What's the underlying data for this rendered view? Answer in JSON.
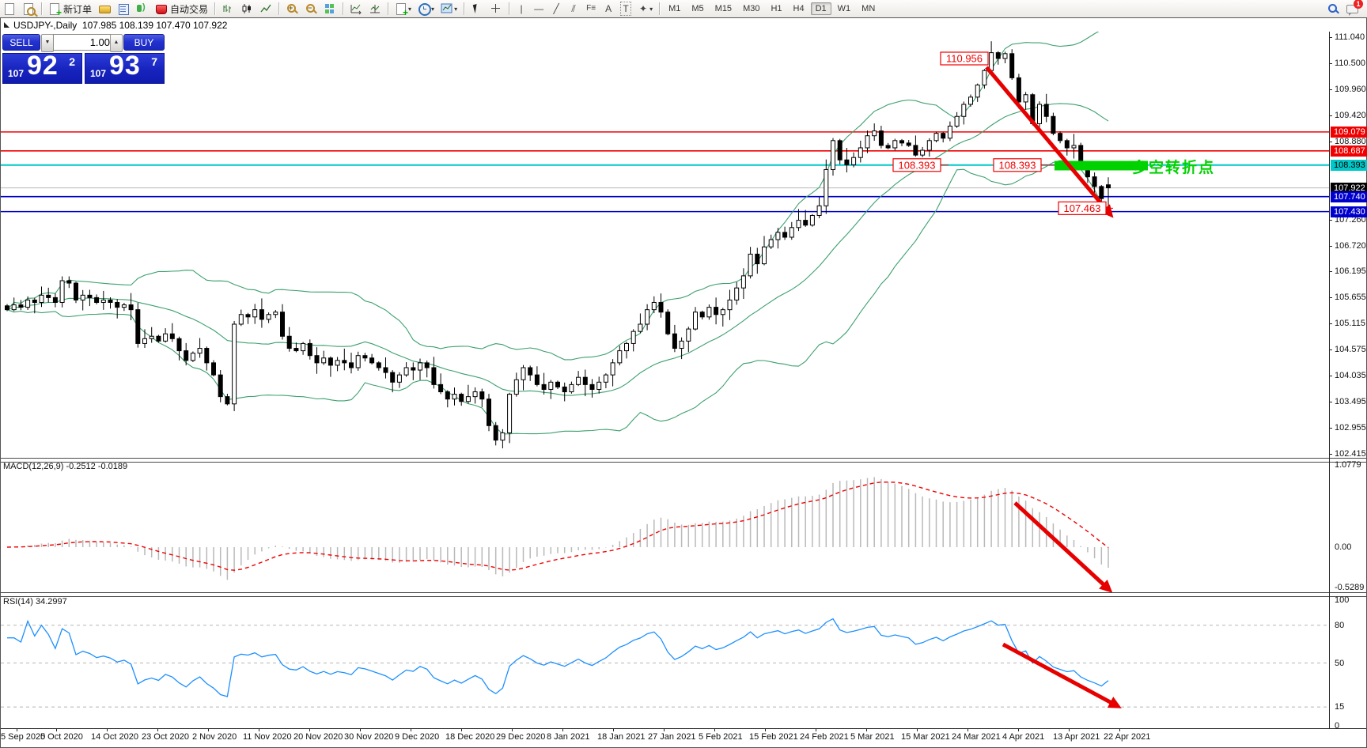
{
  "toolbar": {
    "new_order_label": "新订单",
    "autotrading_label": "自动交易",
    "timeframes": [
      "M1",
      "M5",
      "M15",
      "M30",
      "H1",
      "H4",
      "D1",
      "W1",
      "MN"
    ],
    "active_timeframe": "D1",
    "chat_badge": "1"
  },
  "chart": {
    "title_symbol": "USDJPY-,Daily",
    "title_ohlc": "107.985 108.139 107.470 107.922",
    "one_click": {
      "sell_label": "SELL",
      "buy_label": "BUY",
      "volume": "1.00",
      "sell_prefix": "107",
      "sell_big": "92",
      "sell_sup": "2",
      "buy_prefix": "107",
      "buy_big": "93",
      "buy_sup": "7"
    },
    "y_ticks": [
      "111.040",
      "110.500",
      "109.960",
      "109.420",
      "108.880",
      "107.260",
      "106.720",
      "106.195",
      "105.655",
      "105.115",
      "104.575",
      "104.035",
      "103.495",
      "102.955",
      "102.415"
    ],
    "price_badges": [
      {
        "value": "109.079",
        "bg": "#f00000",
        "fg": "#ffffff",
        "line": "#f00000",
        "line_w": 1.6
      },
      {
        "value": "108.687",
        "bg": "#f00000",
        "fg": "#ffffff",
        "line": "#f00000",
        "line_w": 1.6
      },
      {
        "value": "108.393",
        "bg": "#00c8c8",
        "fg": "#000000",
        "line": "#00c8c8",
        "line_w": 2
      },
      {
        "value": "107.922",
        "bg": "#000000",
        "fg": "#ffffff",
        "line": "#b8b8b8",
        "line_w": 1
      },
      {
        "value": "107.740",
        "bg": "#0000cc",
        "fg": "#ffffff",
        "line": "#0000cc",
        "line_w": 1.6
      },
      {
        "value": "107.430",
        "bg": "#0000cc",
        "fg": "#ffffff",
        "line": "#0000cc",
        "line_w": 1.6
      }
    ],
    "annotations": {
      "peak_label": "110.956",
      "support_label_1": "108.393",
      "support_label_2": "108.393",
      "low_label": "107.463",
      "zone_text": "多空转折点",
      "zone_color": "#00d200",
      "arrow_color": "#e60000"
    },
    "dates": [
      "5 Sep 2020",
      "5 Oct 2020",
      "14 Oct 2020",
      "23 Oct 2020",
      "2 Nov 2020",
      "11 Nov 2020",
      "20 Nov 2020",
      "30 Nov 2020",
      "9 Dec 2020",
      "18 Dec 2020",
      "29 Dec 2020",
      "8 Jan 2021",
      "18 Jan 2021",
      "27 Jan 2021",
      "5 Feb 2021",
      "15 Feb 2021",
      "24 Feb 2021",
      "5 Mar 2021",
      "15 Mar 2021",
      "24 Mar 2021",
      "4 Apr 2021",
      "13 Apr 2021",
      "22 Apr 2021"
    ]
  },
  "macd": {
    "label": "MACD(12,26,9) -0.2512 -0.0189",
    "ticks": [
      "1.0779",
      "0.00",
      "-0.5289"
    ],
    "tick_values": [
      1.0779,
      0,
      -0.5289
    ],
    "histogram_color": "#b9b9b9",
    "signal_color": "#f00000"
  },
  "rsi": {
    "label": "RSI(14) 34.2997",
    "ticks": [
      "100",
      "80",
      "50",
      "15",
      "0"
    ],
    "tick_values": [
      100,
      80,
      50,
      15,
      0
    ],
    "grid_levels": [
      80,
      50,
      15
    ],
    "line_color": "#1e90ff"
  },
  "chart_data": {
    "type": "candlestick",
    "symbol": "USDJPY",
    "period": "Daily",
    "overlays": [
      "Bollinger Bands (20,2)"
    ],
    "lower_panes": [
      "MACD(12,26,9)",
      "RSI(14)"
    ],
    "closes": [
      105.4,
      105.5,
      105.45,
      105.6,
      105.55,
      105.7,
      105.65,
      105.55,
      106.0,
      105.95,
      105.6,
      105.7,
      105.65,
      105.55,
      105.6,
      105.55,
      105.45,
      105.5,
      105.4,
      104.7,
      104.8,
      104.85,
      104.75,
      104.9,
      104.8,
      104.55,
      104.35,
      104.5,
      104.6,
      104.3,
      104.05,
      103.6,
      103.45,
      105.1,
      105.3,
      105.25,
      105.4,
      105.2,
      105.3,
      105.35,
      104.85,
      104.6,
      104.55,
      104.7,
      104.45,
      104.3,
      104.4,
      104.25,
      104.35,
      104.3,
      104.2,
      104.45,
      104.4,
      104.3,
      104.2,
      104.1,
      103.9,
      104.05,
      104.2,
      104.15,
      104.3,
      104.2,
      103.85,
      103.7,
      103.55,
      103.65,
      103.5,
      103.6,
      103.7,
      103.55,
      103.0,
      102.7,
      102.85,
      103.65,
      103.95,
      104.2,
      104.05,
      103.85,
      103.75,
      103.9,
      103.8,
      103.7,
      103.85,
      104.0,
      103.85,
      103.75,
      103.9,
      104.05,
      104.3,
      104.55,
      104.7,
      104.95,
      105.1,
      105.4,
      105.55,
      105.35,
      104.9,
      104.6,
      104.75,
      105.0,
      105.35,
      105.25,
      105.45,
      105.3,
      105.4,
      105.6,
      105.85,
      106.1,
      106.55,
      106.35,
      106.7,
      106.85,
      107.0,
      106.9,
      107.1,
      107.25,
      107.15,
      107.35,
      107.55,
      108.3,
      108.9,
      108.5,
      108.4,
      108.55,
      108.75,
      109.0,
      109.1,
      108.8,
      108.75,
      108.9,
      108.85,
      108.8,
      108.6,
      108.7,
      108.9,
      109.05,
      108.95,
      109.2,
      109.4,
      109.65,
      109.8,
      110.05,
      110.35,
      110.72,
      110.6,
      110.7,
      110.2,
      109.7,
      109.85,
      109.25,
      109.65,
      109.4,
      109.05,
      108.9,
      108.75,
      108.8,
      108.4,
      108.15,
      107.95,
      107.7,
      107.92
    ],
    "overrides": {
      "33": {
        "low": 103.3
      },
      "71": {
        "low": 102.59
      },
      "108": {
        "high": 106.7
      },
      "143": {
        "high": 110.956
      },
      "159": {
        "low": 107.463
      },
      "160": {
        "open": 107.985,
        "high": 108.139,
        "low": 107.47,
        "close": 107.922
      }
    },
    "bollinger_color": "#3ca06e"
  }
}
